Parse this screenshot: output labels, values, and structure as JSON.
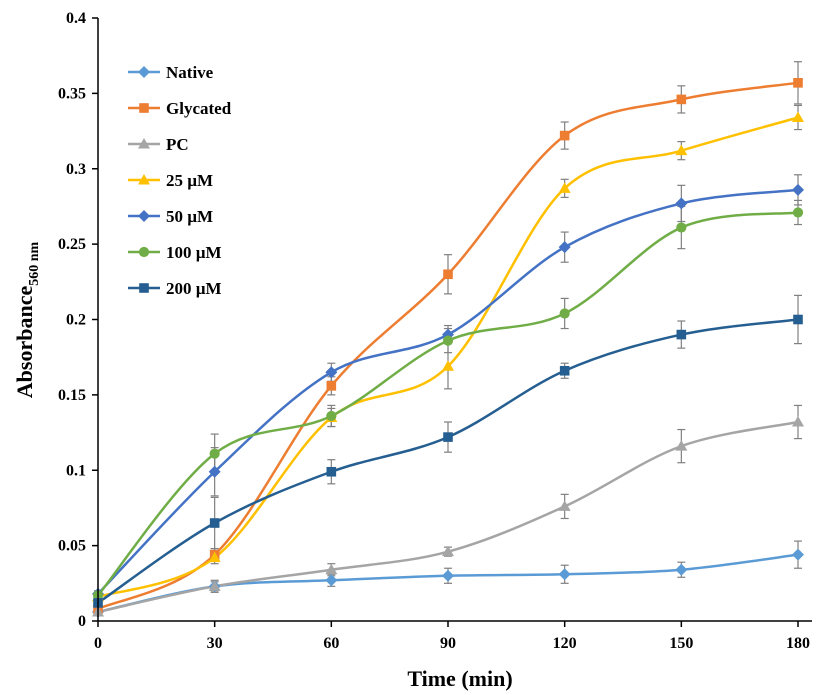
{
  "chart_data": {
    "type": "line",
    "title": "",
    "xlabel": "Time (min)",
    "ylabel": "Absorbance",
    "ylabel_sub": "560 nm",
    "x": [
      0,
      30,
      60,
      90,
      120,
      150,
      180
    ],
    "xlim": [
      0,
      180
    ],
    "ylim": [
      0,
      0.4
    ],
    "x_ticks": [
      "0",
      "30",
      "60",
      "90",
      "120",
      "150",
      "180"
    ],
    "y_ticks": [
      "0",
      "0.05",
      "0.1",
      "0.15",
      "0.2",
      "0.25",
      "0.3",
      "0.35",
      "0.4"
    ],
    "grid": false,
    "legend_position": "top-left",
    "series": [
      {
        "name": "Native",
        "color": "#5B9BD5",
        "marker": "diamond",
        "values": [
          0.006,
          0.023,
          0.027,
          0.03,
          0.031,
          0.034,
          0.044
        ],
        "errors": [
          0.002,
          0.003,
          0.004,
          0.005,
          0.006,
          0.005,
          0.009
        ]
      },
      {
        "name": "Glycated",
        "color": "#ED7D31",
        "marker": "square",
        "values": [
          0.008,
          0.044,
          0.156,
          0.23,
          0.322,
          0.346,
          0.357
        ],
        "errors": [
          0.002,
          0.004,
          0.006,
          0.013,
          0.009,
          0.009,
          0.014
        ]
      },
      {
        "name": "PC",
        "color": "#A5A5A5",
        "marker": "triangle",
        "values": [
          0.006,
          0.023,
          0.034,
          0.046,
          0.076,
          0.116,
          0.132
        ],
        "errors": [
          0.002,
          0.004,
          0.004,
          0.003,
          0.008,
          0.011,
          0.011
        ]
      },
      {
        "name": "25 µM",
        "color": "#FFC000",
        "marker": "triangle",
        "values": [
          0.016,
          0.042,
          0.135,
          0.169,
          0.287,
          0.312,
          0.334
        ],
        "errors": [
          0.002,
          0.004,
          0.006,
          0.015,
          0.006,
          0.006,
          0.008
        ]
      },
      {
        "name": "50 µM",
        "color": "#4472C4",
        "marker": "diamond",
        "values": [
          0.018,
          0.099,
          0.165,
          0.19,
          0.248,
          0.277,
          0.286
        ],
        "errors": [
          0.002,
          0.016,
          0.006,
          0.006,
          0.01,
          0.012,
          0.01
        ]
      },
      {
        "name": "100 µM",
        "color": "#70AD47",
        "marker": "circle",
        "values": [
          0.017,
          0.111,
          0.136,
          0.186,
          0.204,
          0.261,
          0.271
        ],
        "errors": [
          0.002,
          0.013,
          0.007,
          0.008,
          0.01,
          0.014,
          0.008
        ]
      },
      {
        "name": "200 µM",
        "color": "#255E91",
        "marker": "square",
        "values": [
          0.012,
          0.065,
          0.099,
          0.122,
          0.166,
          0.19,
          0.2
        ],
        "errors": [
          0.002,
          0.017,
          0.008,
          0.01,
          0.005,
          0.009,
          0.016
        ]
      }
    ]
  }
}
